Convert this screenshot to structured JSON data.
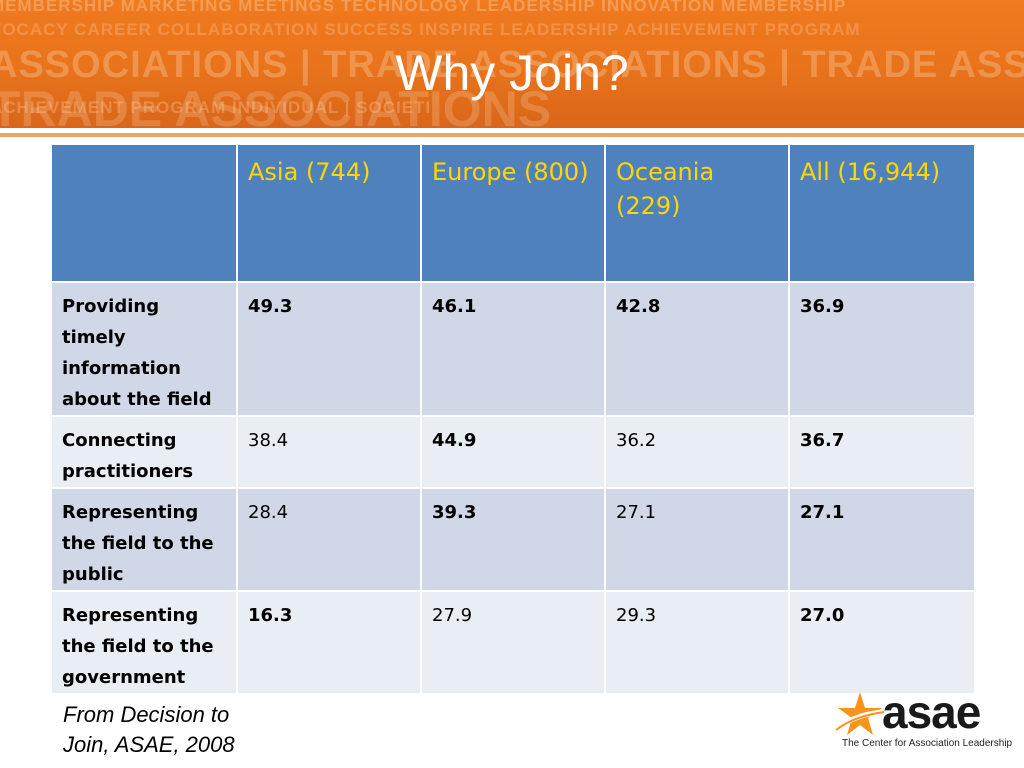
{
  "slide": {
    "title": "Why Join?"
  },
  "banner_words": [
    "MEMBERSHIP MARKETING MEETINGS TECHNOLOGY LEADERSHIP INNOVATION MEMBERSHIP",
    "VOCACY CAREER COLLABORATION SUCCESS INSPIRE LEADERSHIP ACHIEVEMENT PROGRAM",
    "ASSOCIATIONS | TRADE ASSOCIATIONS | TRADE ASSOCIA",
    "TRADE ASSOCIATIONS",
    "ACHIEVEMENT PROGRAM INDIVIDUAL | SOCIETI"
  ],
  "table": {
    "headers": [
      "",
      "Asia (744)",
      "Europe (800)",
      "Oceania (229)",
      "All (16,944)"
    ],
    "rows": [
      {
        "label": "Providing timely information about the field",
        "values": [
          "49.3",
          "46.1",
          "42.8",
          "36.9"
        ],
        "bold": [
          true,
          true,
          true,
          true
        ]
      },
      {
        "label": "Connecting practitioners",
        "values": [
          "38.4",
          "44.9",
          "36.2",
          "36.7"
        ],
        "bold": [
          false,
          true,
          false,
          true
        ]
      },
      {
        "label": "Representing the field to the public",
        "values": [
          "28.4",
          "39.3",
          "27.1",
          "27.1"
        ],
        "bold": [
          false,
          true,
          false,
          true
        ]
      },
      {
        "label": "Representing the field to the government",
        "values": [
          "16.3",
          "27.9",
          "29.3",
          "27.0"
        ],
        "bold": [
          true,
          false,
          false,
          true
        ]
      }
    ]
  },
  "source": {
    "line1": "From Decision to",
    "line2": "Join, ASAE, 2008"
  },
  "logo": {
    "wordmark": "asae",
    "tagline": "The Center for Association Leadership",
    "star_color": "#f7941d"
  }
}
